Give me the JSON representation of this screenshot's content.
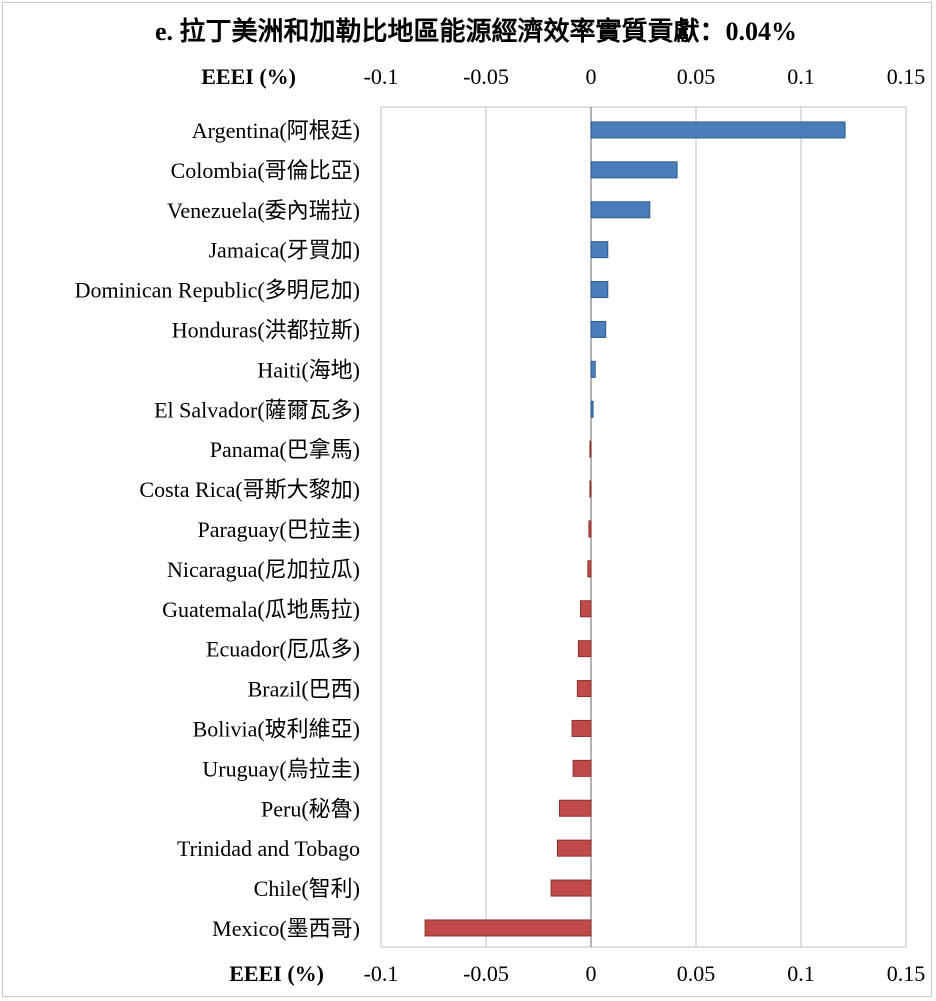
{
  "chart_data": {
    "type": "bar",
    "orientation": "horizontal",
    "title": "e. 拉丁美洲和加勒比地區能源經濟效率實質貢獻：0.04%",
    "xlabel": "EEEI (%)",
    "xlim": [
      -0.1,
      0.15
    ],
    "xticks": [
      -0.1,
      -0.05,
      0,
      0.05,
      0.1,
      0.15
    ],
    "xtick_labels": [
      "-0.1",
      "-0.05",
      "0",
      "0.05",
      "0.1",
      "0.15"
    ],
    "axis_at": "top-and-bottom",
    "grid": true,
    "categories": [
      "Argentina(阿根廷)",
      "Colombia(哥倫比亞)",
      "Venezuela(委內瑞拉)",
      "Jamaica(牙買加)",
      "Dominican Republic(多明尼加)",
      "Honduras(洪都拉斯)",
      "Haiti(海地)",
      "El Salvador(薩爾瓦多)",
      "Panama(巴拿馬)",
      "Costa Rica(哥斯大黎加)",
      "Paraguay(巴拉圭)",
      "Nicaragua(尼加拉瓜)",
      "Guatemala(瓜地馬拉)",
      "Ecuador(厄瓜多)",
      "Brazil(巴西)",
      "Bolivia(玻利維亞)",
      "Uruguay(烏拉圭)",
      "Peru(秘魯)",
      "Trinidad and Tobago",
      "Chile(智利)",
      "Mexico(墨西哥)"
    ],
    "values": [
      0.121,
      0.041,
      0.028,
      0.008,
      0.008,
      0.007,
      0.002,
      0.001,
      -0.0005,
      -0.0005,
      -0.001,
      -0.0015,
      -0.005,
      -0.006,
      -0.0065,
      -0.009,
      -0.0085,
      -0.015,
      -0.016,
      -0.019,
      -0.079
    ],
    "colors": {
      "positive": "#4a7ebb",
      "negative": "#be4b48",
      "positive_edge": "#2f5a8e",
      "negative_edge": "#8c2f2d",
      "grid": "#bfbfbf"
    }
  }
}
